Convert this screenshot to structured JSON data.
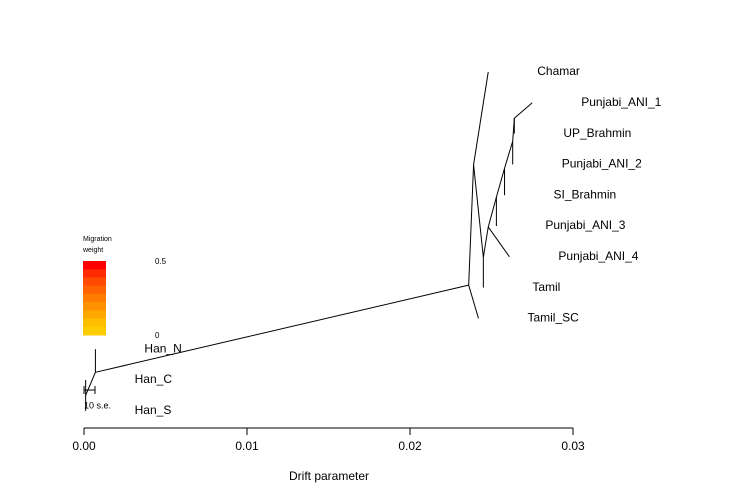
{
  "chart_data": {
    "type": "tree",
    "xlabel": "Drift parameter",
    "xlim": [
      0,
      0.03
    ],
    "xticks": [
      {
        "value": 0,
        "label": "0.00"
      },
      {
        "value": 0.01,
        "label": "0.01"
      },
      {
        "value": 0.02,
        "label": "0.02"
      },
      {
        "value": 0.03,
        "label": "0.03"
      }
    ],
    "legend": {
      "title": [
        "Migration",
        "weight"
      ],
      "scale": [
        0.5,
        0
      ],
      "colors": [
        "#ff0000",
        "#ff2a00",
        "#ff4a00",
        "#ff6400",
        "#ff7c00",
        "#ff9200",
        "#ffa800",
        "#ffbe00",
        "#ffcc00"
      ]
    },
    "se_label": "10 s.e.",
    "tree": {
      "x": 0.0236,
      "children": [
        {
          "x": 0.0239,
          "children": [
            {
              "name": "Chamar",
              "x": 0.0248
            },
            {
              "x": 0.0245,
              "children": [
                {
                  "x": 0.0248,
                  "children": [
                    {
                      "x": 0.0253,
                      "children": [
                        {
                          "x": 0.0258,
                          "children": [
                            {
                              "x": 0.0263,
                              "children": [
                                {
                                  "x": 0.0264,
                                  "children": [
                                    {
                                      "name": "Punjabi_ANI_1",
                                      "x": 0.0275
                                    },
                                    {
                                      "name": "UP_Brahmin",
                                      "x": 0.0264
                                    }
                                  ]
                                },
                                {
                                  "name": "Punjabi_ANI_2",
                                  "x": 0.0263
                                }
                              ]
                            },
                            {
                              "name": "SI_Brahmin",
                              "x": 0.0258
                            }
                          ]
                        },
                        {
                          "name": "Punjabi_ANI_3",
                          "x": 0.0253
                        }
                      ]
                    },
                    {
                      "name": "Punjabi_ANI_4",
                      "x": 0.0261
                    }
                  ]
                },
                {
                  "name": "Tamil",
                  "x": 0.0245
                }
              ]
            }
          ]
        },
        {
          "name": "Tamil_SC",
          "x": 0.0242
        },
        {
          "x": 0.0007,
          "children": [
            {
              "name": "Han_N",
              "x": 0.0007
            },
            {
              "x": 0.0001,
              "children": [
                {
                  "name": "Han_C",
                  "x": 0.0001
                },
                {
                  "name": "Han_S",
                  "x": 0.0001
                }
              ]
            }
          ]
        }
      ]
    }
  }
}
